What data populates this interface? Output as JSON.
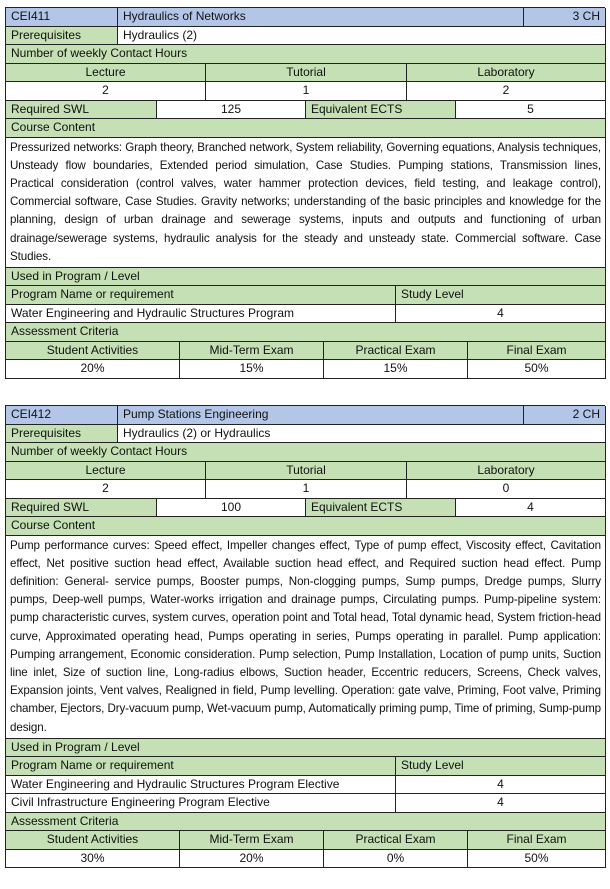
{
  "courses": [
    {
      "code": "CEI411",
      "title": "Hydraulics of Networks",
      "credit_hours": "3 CH",
      "prerequisites_label": "Prerequisites",
      "prerequisites": "Hydraulics (2)",
      "contact_hours_label": "Number of weekly Contact Hours",
      "contact_headers": [
        "Lecture",
        "Tutorial",
        "Laboratory"
      ],
      "contact_values": [
        "2",
        "1",
        "2"
      ],
      "swl_label": "Required SWL",
      "swl": "125",
      "ects_label": "Equivalent ECTS",
      "ects": "5",
      "content_label": "Course Content",
      "content": "Pressurized networks: Graph theory, Branched network, System reliability, Governing equations, Analysis techniques, Unsteady flow boundaries, Extended period simulation, Case Studies. Pumping stations, Transmission lines, Practical consideration (control valves, water hammer protection devices, field testing, and leakage control), Commercial software, Case Studies. Gravity networks; understanding of the basic principles and knowledge for the planning, design of urban drainage and sewerage systems, inputs and outputs and functioning of urban drainage/sewerage systems, hydraulic analysis for the steady and unsteady state. Commercial software. Case Studies.",
      "program_label": "Used in Program / Level",
      "program_headers": [
        "Program Name or requirement",
        "Study Level"
      ],
      "programs": [
        {
          "name": "Water Engineering and Hydraulic Structures Program",
          "level": "4"
        }
      ],
      "assessment_label": "Assessment Criteria",
      "assessment_headers": [
        "Student Activities",
        "Mid-Term Exam",
        "Practical Exam",
        "Final Exam"
      ],
      "assessment_values": [
        "20%",
        "15%",
        "15%",
        "50%"
      ]
    },
    {
      "code": "CEI412",
      "title": "Pump Stations Engineering",
      "credit_hours": "2 CH",
      "prerequisites_label": "Prerequisites",
      "prerequisites": "Hydraulics (2) or Hydraulics",
      "contact_hours_label": "Number of weekly Contact Hours",
      "contact_headers": [
        "Lecture",
        "Tutorial",
        "Laboratory"
      ],
      "contact_values": [
        "2",
        "1",
        "0"
      ],
      "swl_label": "Required SWL",
      "swl": "100",
      "ects_label": "Equivalent ECTS",
      "ects": "4",
      "content_label": "Course Content",
      "content": "Pump performance curves: Speed effect, Impeller changes effect, Type of pump effect, Viscosity effect, Cavitation effect, Net positive suction head effect, Available suction head effect, and Required suction head effect. Pump definition: General- service pumps, Booster pumps, Non-clogging pumps, Sump pumps, Dredge pumps, Slurry pumps, Deep-well pumps, Water-works irrigation and drainage pumps, Circulating pumps. Pump-pipeline system: pump characteristic curves, system curves, operation point and Total head, Total dynamic head, System friction-head curve, Approximated operating head, Pumps operating in series, Pumps operating in parallel. Pump application: Pumping arrangement, Economic consideration. Pump selection, Pump Installation, Location of pump units, Suction line inlet, Size of suction line, Long-radius elbows, Suction header, Eccentric reducers, Screens, Check valves, Expansion joints, Vent valves, Realigned in field, Pump levelling. Operation: gate valve, Priming, Foot valve, Priming chamber, Ejectors, Dry-vacuum pump, Wet-vacuum pump, Automatically priming pump, Time of priming, Sump-pump design.",
      "program_label": "Used in Program / Level",
      "program_headers": [
        "Program Name or requirement",
        "Study Level"
      ],
      "programs": [
        {
          "name": "Water Engineering and Hydraulic Structures Program Elective",
          "level": "4"
        },
        {
          "name": "Civil Infrastructure Engineering Program Elective",
          "level": "4"
        }
      ],
      "assessment_label": "Assessment Criteria",
      "assessment_headers": [
        "Student Activities",
        "Mid-Term Exam",
        "Practical Exam",
        "Final Exam"
      ],
      "assessment_values": [
        "30%",
        "20%",
        "0%",
        "50%"
      ]
    }
  ],
  "colors": {
    "header_blue": "#b4c6e7",
    "label_green": "#c5e0b4",
    "border": "#222222"
  }
}
